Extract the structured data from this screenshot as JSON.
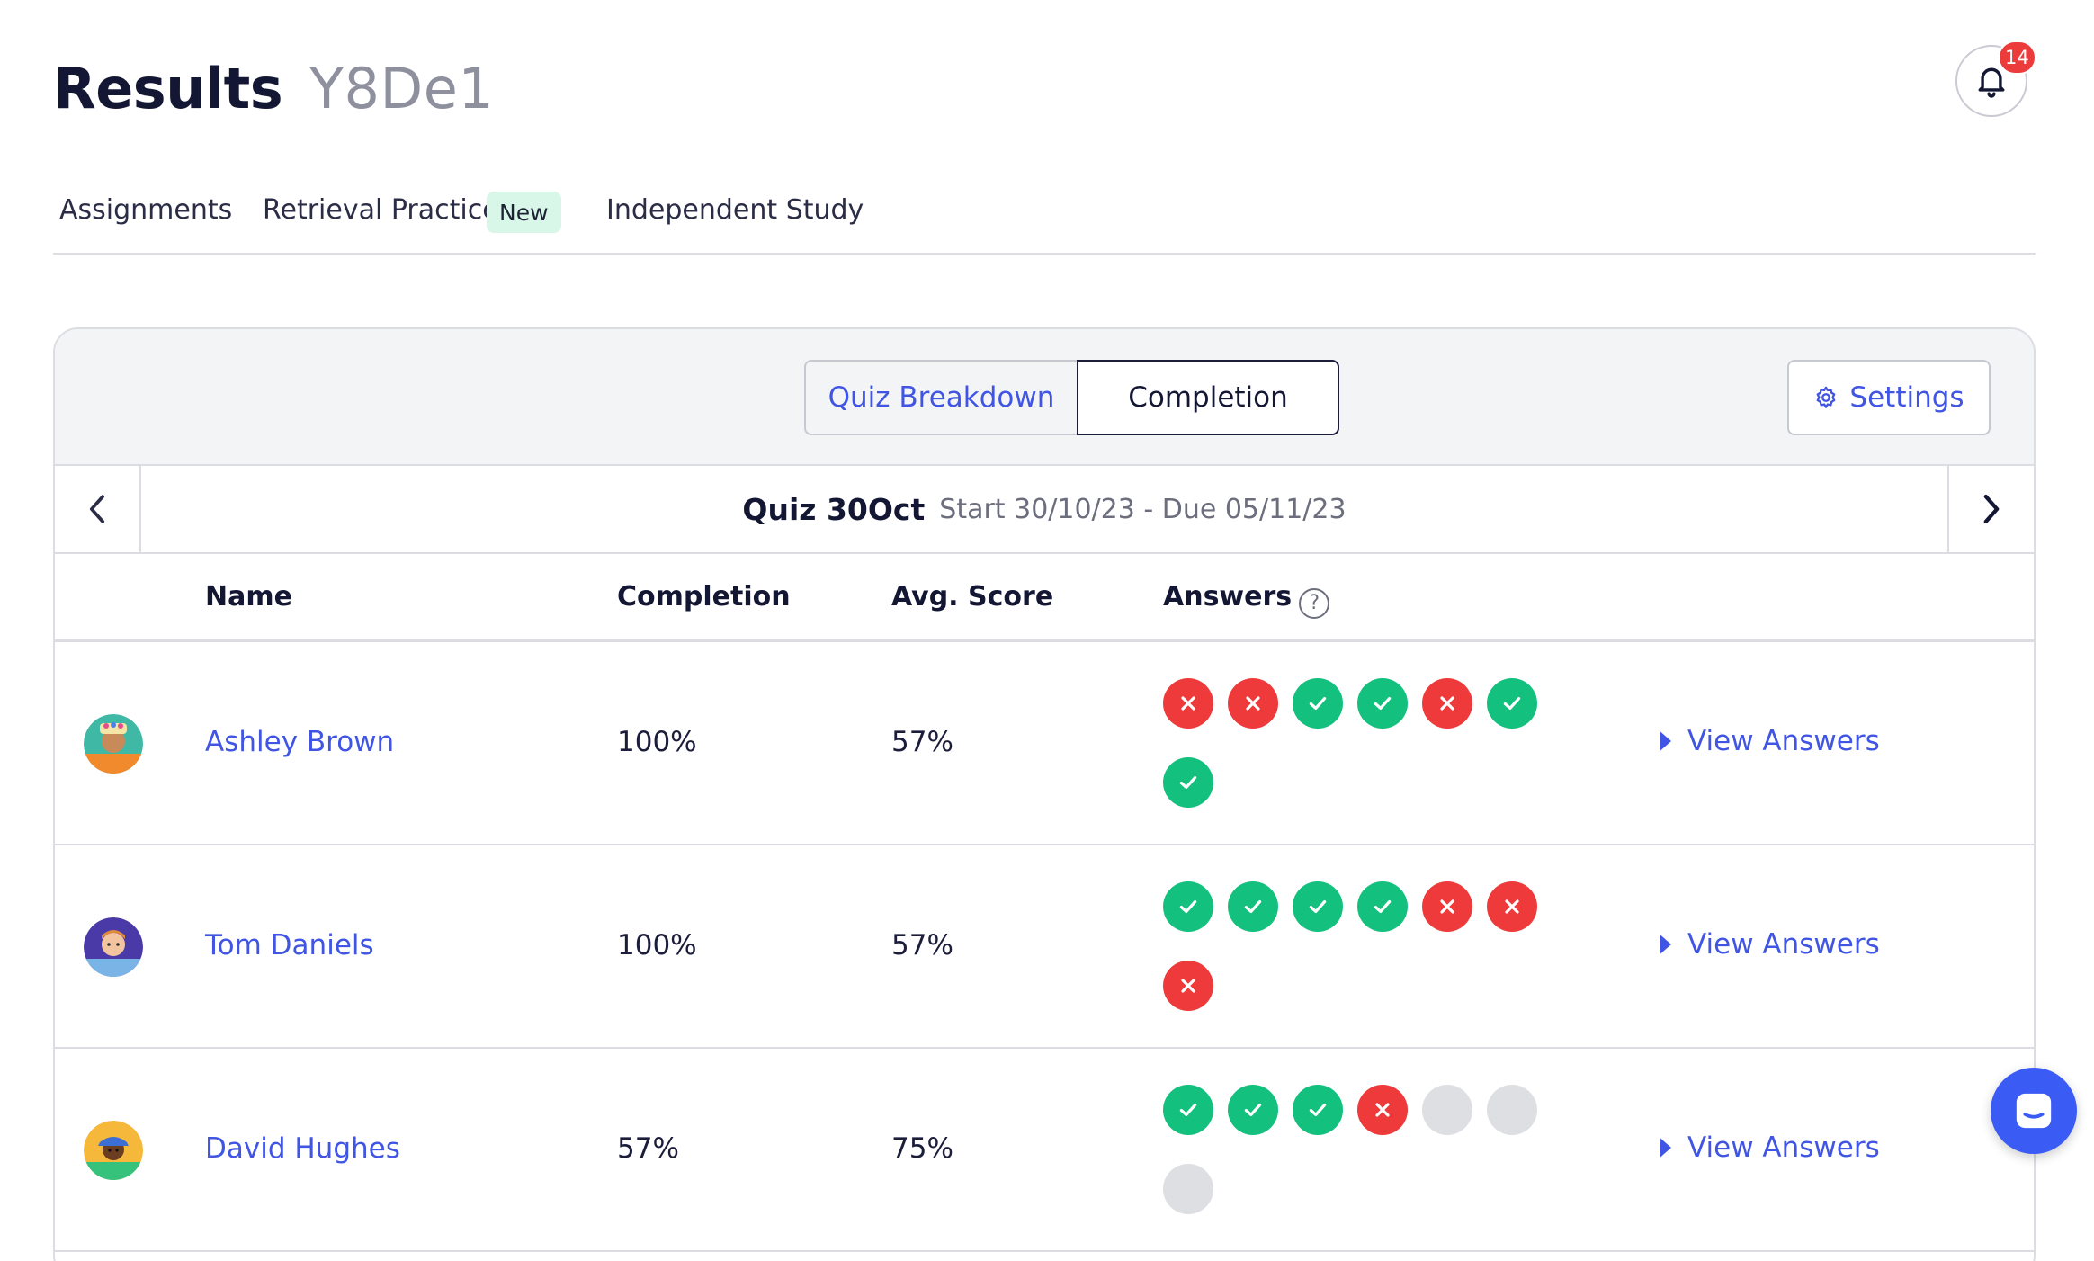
{
  "header": {
    "title": "Results",
    "class_name": "Y8De1"
  },
  "notifications": {
    "count": "14"
  },
  "tabs": [
    {
      "label": "Assignments"
    },
    {
      "label": "Retrieval Practice",
      "badge": "New"
    },
    {
      "label": "Independent Study"
    }
  ],
  "toggle": {
    "left_label": "Quiz Breakdown",
    "right_label": "Completion",
    "active": "Completion"
  },
  "settings": {
    "label": "Settings"
  },
  "quiz": {
    "name": "Quiz 30Oct",
    "dates": "Start 30/10/23 - Due 05/11/23"
  },
  "columns": {
    "name": "Name",
    "completion": "Completion",
    "score": "Avg. Score",
    "answers": "Answers",
    "help": "?"
  },
  "students": [
    {
      "name": "Ashley Brown",
      "completion": "100%",
      "score": "57%",
      "answers": [
        "wrong",
        "wrong",
        "correct",
        "correct",
        "wrong",
        "correct",
        "correct"
      ],
      "view_label": "View Answers"
    },
    {
      "name": "Tom Daniels",
      "completion": "100%",
      "score": "57%",
      "answers": [
        "correct",
        "correct",
        "correct",
        "correct",
        "wrong",
        "wrong",
        "wrong"
      ],
      "view_label": "View Answers"
    },
    {
      "name": "David Hughes",
      "completion": "57%",
      "score": "75%",
      "answers": [
        "correct",
        "correct",
        "correct",
        "wrong",
        "blank",
        "blank",
        "blank"
      ],
      "view_label": "View Answers"
    }
  ],
  "colors": {
    "accent": "#4055e3",
    "correct": "#13c07d",
    "wrong": "#ee3a3a",
    "blank": "#dedfe2",
    "badge": "#ec3b3b",
    "new_badge_bg": "#d8f7e8"
  },
  "icons": {
    "bell": "bell-icon",
    "settings": "gear-icon",
    "prev": "chevron-left-icon",
    "next": "chevron-right-icon",
    "chat": "chat-icon"
  }
}
